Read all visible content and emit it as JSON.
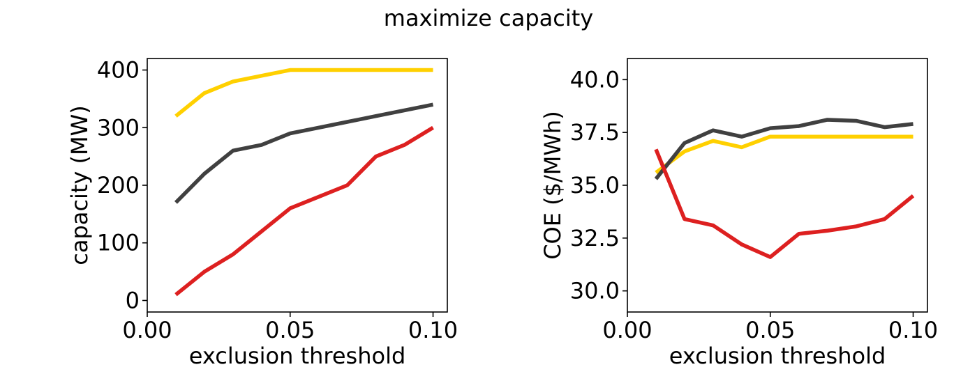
{
  "figure": {
    "title": "maximize capacity"
  },
  "colors": {
    "yellow": "#ffd000",
    "dark": "#404040",
    "red": "#dd2020"
  },
  "chart_data": [
    {
      "type": "line",
      "title": "",
      "xlabel": "exclusion threshold",
      "ylabel": "capacity (MW)",
      "xlim": [
        0.0,
        0.105
      ],
      "ylim": [
        -20,
        420
      ],
      "xticks": [
        0.0,
        0.05,
        0.1
      ],
      "xtick_labels": [
        "0.00",
        "0.05",
        "0.10"
      ],
      "yticks": [
        0,
        100,
        200,
        300,
        400
      ],
      "ytick_labels": [
        "0",
        "100",
        "200",
        "300",
        "400"
      ],
      "grid": false,
      "x": [
        0.01,
        0.02,
        0.03,
        0.04,
        0.05,
        0.06,
        0.07,
        0.08,
        0.09,
        0.1
      ],
      "series": [
        {
          "color": "#ffd000",
          "values": [
            320,
            360,
            380,
            390,
            400,
            400,
            400,
            400,
            400,
            400
          ]
        },
        {
          "color": "#404040",
          "values": [
            170,
            220,
            260,
            270,
            290,
            300,
            310,
            320,
            330,
            340
          ]
        },
        {
          "color": "#dd2020",
          "values": [
            10,
            50,
            80,
            120,
            160,
            180,
            200,
            250,
            270,
            300
          ]
        }
      ]
    },
    {
      "type": "line",
      "title": "",
      "xlabel": "exclusion threshold",
      "ylabel": "COE ($/MWh)",
      "xlim": [
        0.0,
        0.105
      ],
      "ylim": [
        29.0,
        41.0
      ],
      "xticks": [
        0.0,
        0.05,
        0.1
      ],
      "xtick_labels": [
        "0.00",
        "0.05",
        "0.10"
      ],
      "yticks": [
        30.0,
        32.5,
        35.0,
        37.5,
        40.0
      ],
      "ytick_labels": [
        "30.0",
        "32.5",
        "35.0",
        "37.5",
        "40.0"
      ],
      "grid": false,
      "x": [
        0.01,
        0.02,
        0.03,
        0.04,
        0.05,
        0.06,
        0.07,
        0.08,
        0.09,
        0.1
      ],
      "series": [
        {
          "color": "#ffd000",
          "values": [
            35.6,
            36.6,
            37.1,
            36.8,
            37.3,
            37.3,
            37.3,
            37.3,
            37.3,
            37.3
          ]
        },
        {
          "color": "#404040",
          "values": [
            35.3,
            37.0,
            37.6,
            37.3,
            37.7,
            37.8,
            38.1,
            38.05,
            37.75,
            37.9
          ]
        },
        {
          "color": "#dd2020",
          "values": [
            36.7,
            33.4,
            33.1,
            32.2,
            31.6,
            32.7,
            32.85,
            33.05,
            33.4,
            34.5
          ]
        }
      ]
    }
  ]
}
